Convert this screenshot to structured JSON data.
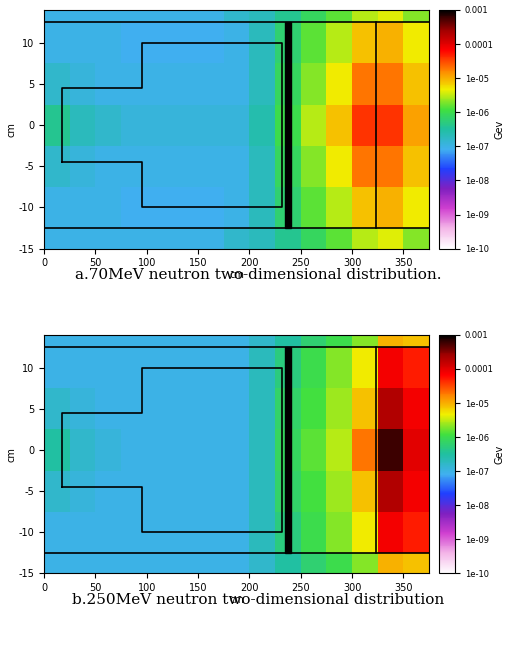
{
  "chart_data": [
    {
      "type": "heatmap",
      "title": "a.70MeV neutron two-dimensional distribution.",
      "x_label": "cm",
      "y_label": "cm",
      "xlim": [
        0,
        375
      ],
      "ylim": [
        -15,
        14
      ],
      "xticks": [
        0,
        50,
        100,
        150,
        200,
        250,
        300,
        350
      ],
      "yticks": [
        -15,
        -10,
        -5,
        0,
        5,
        10
      ],
      "x_edges": [
        0,
        25,
        50,
        75,
        100,
        125,
        150,
        175,
        200,
        225,
        250,
        275,
        300,
        325,
        350,
        375
      ],
      "y_edges": [
        -15,
        -12.5,
        -7.5,
        -2.5,
        2.5,
        7.5,
        12.5,
        14
      ],
      "cells": [
        [
          1e-07,
          1e-07,
          1e-07,
          1e-07,
          1e-07,
          1e-07,
          1e-07,
          1.5e-07,
          2e-07,
          4e-07,
          8e-07,
          1.5e-06,
          3e-06,
          4e-06,
          2e-06
        ],
        [
          1e-07,
          1e-07,
          1e-07,
          8e-08,
          8e-08,
          8e-08,
          8e-08,
          1e-07,
          2e-07,
          6e-07,
          1.5e-06,
          3e-06,
          8e-06,
          1e-05,
          5e-06
        ],
        [
          1.5e-07,
          1.2e-07,
          1e-07,
          1e-07,
          1e-07,
          1e-07,
          1e-07,
          1e-07,
          2e-07,
          8e-07,
          2e-06,
          5e-06,
          2e-05,
          2e-05,
          8e-06
        ],
        [
          4e-07,
          2e-07,
          1.5e-07,
          1.2e-07,
          1.2e-07,
          1.2e-07,
          1.2e-07,
          1.2e-07,
          2.5e-07,
          1e-06,
          3e-06,
          8e-06,
          4e-05,
          4e-05,
          1.2e-05
        ],
        [
          1.5e-07,
          1.2e-07,
          1e-07,
          1e-07,
          1e-07,
          1e-07,
          1e-07,
          1e-07,
          2e-07,
          8e-07,
          2e-06,
          5e-06,
          2e-05,
          2e-05,
          8e-06
        ],
        [
          1e-07,
          1e-07,
          1e-07,
          8e-08,
          8e-08,
          8e-08,
          8e-08,
          1e-07,
          2e-07,
          6e-07,
          1.5e-06,
          3e-06,
          8e-06,
          1e-05,
          5e-06
        ],
        [
          1e-07,
          1e-07,
          1e-07,
          1e-07,
          1e-07,
          1e-07,
          1e-07,
          1.5e-07,
          2e-07,
          4e-07,
          8e-07,
          1.5e-06,
          3e-06,
          4e-06,
          2e-06
        ]
      ],
      "colorbar": {
        "label": "Gev",
        "range": [
          1e-10,
          0.001
        ],
        "ticks": [
          {
            "value": 0.001,
            "label": "0.001"
          },
          {
            "value": 0.0001,
            "label": "0.0001"
          },
          {
            "value": 1e-05,
            "label": "1e-05"
          },
          {
            "value": 1e-06,
            "label": "1e-06"
          },
          {
            "value": 1e-07,
            "label": "1e-07"
          },
          {
            "value": 1e-08,
            "label": "1e-08"
          },
          {
            "value": 1e-09,
            "label": "1e-09"
          },
          {
            "value": 1e-10,
            "label": "1e-10"
          }
        ]
      },
      "outlines": [
        {
          "x": [
            0,
            375
          ],
          "y": [
            12.5,
            12.5
          ]
        },
        {
          "x": [
            0,
            375
          ],
          "y": [
            -12.5,
            -12.5
          ]
        },
        {
          "x": [
            18,
            18,
            95,
            95,
            232,
            232,
            95,
            95,
            18
          ],
          "y": [
            -4.5,
            4.5,
            4.5,
            10,
            10,
            -10,
            -10,
            -4.5,
            -4.5
          ]
        },
        {
          "x": [
            323,
            323
          ],
          "y": [
            -12.5,
            12.5
          ]
        }
      ],
      "wall": {
        "x": [
          235,
          241
        ],
        "y": [
          -12.5,
          12.5
        ]
      }
    },
    {
      "type": "heatmap",
      "title": "b.250MeV neutron two-dimensional distribution",
      "x_label": "cm",
      "y_label": "cm",
      "xlim": [
        0,
        375
      ],
      "ylim": [
        -15,
        14
      ],
      "xticks": [
        0,
        50,
        100,
        150,
        200,
        250,
        300,
        350
      ],
      "yticks": [
        -15,
        -10,
        -5,
        0,
        5,
        10
      ],
      "x_edges": [
        0,
        25,
        50,
        75,
        100,
        125,
        150,
        175,
        200,
        225,
        250,
        275,
        300,
        325,
        350,
        375
      ],
      "y_edges": [
        -15,
        -12.5,
        -7.5,
        -2.5,
        2.5,
        7.5,
        12.5,
        14
      ],
      "cells": [
        [
          1e-07,
          1e-07,
          1e-07,
          1e-07,
          1e-07,
          1e-07,
          1e-07,
          1e-07,
          1.5e-07,
          3e-07,
          6e-07,
          1e-06,
          2e-06,
          1e-05,
          8e-06
        ],
        [
          1e-07,
          1e-07,
          1e-07,
          1e-07,
          1e-07,
          1e-07,
          1e-07,
          1e-07,
          2e-07,
          5e-07,
          1e-06,
          2e-06,
          5e-06,
          8e-05,
          5e-05
        ],
        [
          1.5e-07,
          1.2e-07,
          1e-07,
          1e-07,
          1e-07,
          1e-07,
          1e-07,
          1e-07,
          2e-07,
          7e-07,
          1.2e-06,
          2.5e-06,
          8e-06,
          0.0002,
          8e-05
        ],
        [
          3e-07,
          1.5e-07,
          1.2e-07,
          1e-07,
          1e-07,
          1e-07,
          1e-07,
          1e-07,
          2e-07,
          8e-07,
          1.5e-06,
          3e-06,
          2e-05,
          0.0006,
          0.0001
        ],
        [
          1.5e-07,
          1.2e-07,
          1e-07,
          1e-07,
          1e-07,
          1e-07,
          1e-07,
          1e-07,
          2e-07,
          7e-07,
          1.2e-06,
          2.5e-06,
          8e-06,
          0.0002,
          8e-05
        ],
        [
          1e-07,
          1e-07,
          1e-07,
          1e-07,
          1e-07,
          1e-07,
          1e-07,
          1e-07,
          2e-07,
          5e-07,
          1e-06,
          2e-06,
          5e-06,
          8e-05,
          5e-05
        ],
        [
          1e-07,
          1e-07,
          1e-07,
          1e-07,
          1e-07,
          1e-07,
          1e-07,
          1e-07,
          1.5e-07,
          3e-07,
          6e-07,
          1e-06,
          2e-06,
          1e-05,
          8e-06
        ]
      ],
      "colorbar": {
        "label": "Gev",
        "range": [
          1e-10,
          0.001
        ],
        "ticks": [
          {
            "value": 0.001,
            "label": "0.001"
          },
          {
            "value": 0.0001,
            "label": "0.0001"
          },
          {
            "value": 1e-05,
            "label": "1e-05"
          },
          {
            "value": 1e-06,
            "label": "1e-06"
          },
          {
            "value": 1e-07,
            "label": "1e-07"
          },
          {
            "value": 1e-08,
            "label": "1e-08"
          },
          {
            "value": 1e-09,
            "label": "1e-09"
          },
          {
            "value": 1e-10,
            "label": "1e-10"
          }
        ]
      },
      "outlines": [
        {
          "x": [
            0,
            375
          ],
          "y": [
            12.5,
            12.5
          ]
        },
        {
          "x": [
            0,
            375
          ],
          "y": [
            -12.5,
            -12.5
          ]
        },
        {
          "x": [
            18,
            18,
            95,
            95,
            232,
            232,
            95,
            95,
            18
          ],
          "y": [
            -4.5,
            4.5,
            4.5,
            10,
            10,
            -10,
            -10,
            -4.5,
            -4.5
          ]
        },
        {
          "x": [
            323,
            323
          ],
          "y": [
            -12.5,
            12.5
          ]
        }
      ],
      "wall": {
        "x": [
          235,
          241
        ],
        "y": [
          -12.5,
          12.5
        ]
      }
    }
  ]
}
